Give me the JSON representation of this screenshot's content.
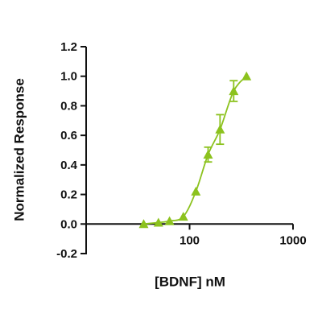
{
  "chart_data": {
    "type": "scatter",
    "x_label": "[BDNF] nM",
    "y_label": "Normalized Response",
    "x_scale": "log",
    "xlim": [
      10,
      1000
    ],
    "xticks": [
      100,
      1000
    ],
    "ylim": [
      -0.2,
      1.2
    ],
    "yticks": [
      -0.2,
      {
        "value": 0,
        "label": "0.0"
      },
      0.2,
      0.4,
      0.6,
      0.8,
      {
        "value": 1,
        "label": "1.0"
      },
      1.2
    ],
    "series": [
      {
        "color": "#8cc21e",
        "x": [
          36,
          50,
          64,
          87,
          115,
          151,
          197,
          267,
          355
        ],
        "values": [
          0.0,
          0.01,
          0.02,
          0.05,
          0.22,
          0.47,
          0.64,
          0.9,
          1.0
        ],
        "errors": [
          null,
          null,
          null,
          null,
          null,
          0.05,
          0.1,
          0.07,
          null
        ]
      }
    ]
  }
}
